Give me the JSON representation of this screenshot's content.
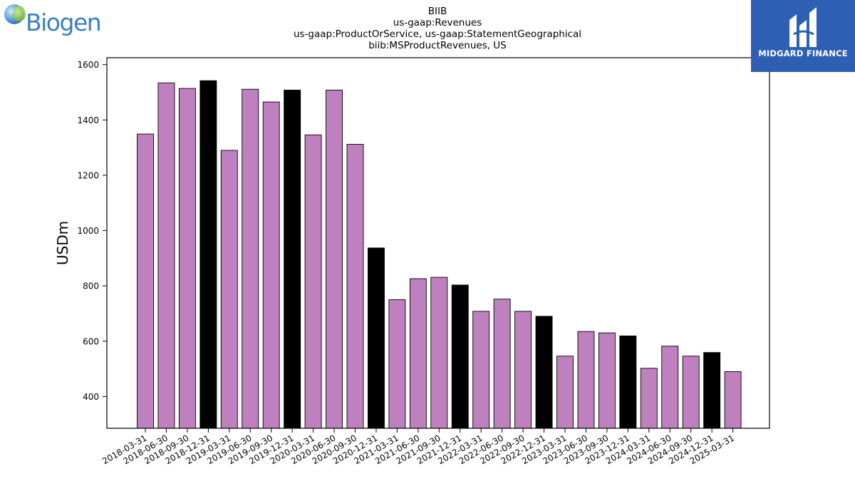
{
  "logos": {
    "left_brand": "Biogen",
    "right_brand": "MIDGARD FINANCE"
  },
  "chart_data": {
    "type": "bar",
    "title_lines": [
      "BIIB",
      "us-gaap:Revenues",
      "us-gaap:ProductOrService, us-gaap:StatementGeographical",
      "biib:MSProductRevenues, US"
    ],
    "xlabel": "",
    "ylabel": "USDm",
    "ylim": [
      285,
      1625
    ],
    "yticks": [
      400,
      600,
      800,
      1000,
      1200,
      1400,
      1600
    ],
    "grid": false,
    "colors": {
      "quarter": "#bf80bf",
      "year_end": "#000000",
      "edge": "#000000"
    },
    "categories": [
      "2018-03-31",
      "2018-06-30",
      "2018-09-30",
      "2018-12-31",
      "2019-03-31",
      "2019-06-30",
      "2019-09-30",
      "2019-12-31",
      "2020-03-31",
      "2020-06-30",
      "2020-09-30",
      "2020-12-31",
      "2021-03-31",
      "2021-06-30",
      "2021-09-30",
      "2021-12-31",
      "2022-03-31",
      "2022-06-30",
      "2022-09-30",
      "2022-12-31",
      "2023-03-31",
      "2023-06-30",
      "2023-09-30",
      "2023-12-31",
      "2024-03-31",
      "2024-06-30",
      "2024-09-30",
      "2024-12-31",
      "2025-03-31"
    ],
    "values": [
      1349,
      1534,
      1514,
      1542,
      1290,
      1511,
      1465,
      1508,
      1346,
      1508,
      1312,
      937,
      750,
      826,
      831,
      803,
      708,
      752,
      708,
      690,
      546,
      635,
      630,
      619,
      502,
      582,
      546,
      559,
      490
    ],
    "year_end_flags": [
      false,
      false,
      false,
      true,
      false,
      false,
      false,
      true,
      false,
      false,
      false,
      true,
      false,
      false,
      false,
      true,
      false,
      false,
      false,
      true,
      false,
      false,
      false,
      true,
      false,
      false,
      false,
      true,
      false
    ]
  }
}
